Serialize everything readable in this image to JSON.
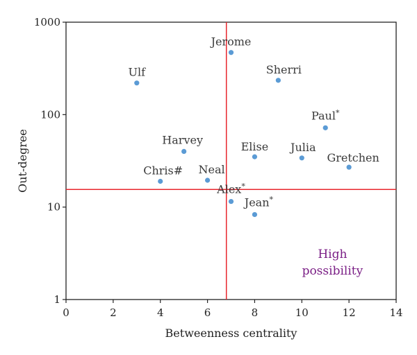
{
  "chart_data": {
    "type": "scatter",
    "title": "",
    "xlabel": "Betweenness centrality",
    "ylabel": "Out-degree",
    "xlim": [
      0,
      14
    ],
    "ylim": [
      1,
      1000
    ],
    "y_scale": "log",
    "x_ticks": [
      "0",
      "2",
      "4",
      "6",
      "8",
      "10",
      "12",
      "14"
    ],
    "x_tick_values": [
      0,
      2,
      4,
      6,
      8,
      10,
      12,
      14
    ],
    "y_ticks": [
      "1",
      "10",
      "100",
      "1000"
    ],
    "y_tick_values": [
      1,
      10,
      100,
      1000
    ],
    "grid": false,
    "reference_lines": {
      "x": 6.8,
      "y": 15.5,
      "color": "#e8262d"
    },
    "points": [
      {
        "label": "Jerome",
        "mark": "",
        "x": 7,
        "y": 470,
        "highlight": false
      },
      {
        "label": "Ulf",
        "mark": "",
        "x": 3,
        "y": 220,
        "highlight": false
      },
      {
        "label": "Sherri",
        "mark": "",
        "x": 9,
        "y": 235,
        "highlight": false
      },
      {
        "label": "Paul",
        "mark": "*",
        "x": 11,
        "y": 72,
        "highlight": false
      },
      {
        "label": "Harvey",
        "mark": "",
        "x": 5,
        "y": 40,
        "highlight": false
      },
      {
        "label": "Elise",
        "mark": "",
        "x": 8,
        "y": 35,
        "highlight": false
      },
      {
        "label": "Julia",
        "mark": "",
        "x": 10,
        "y": 34,
        "highlight": false
      },
      {
        "label": "Gretchen",
        "mark": "",
        "x": 12,
        "y": 27,
        "highlight": false
      },
      {
        "label": "Chris#",
        "mark": "",
        "x": 4,
        "y": 19,
        "highlight": false
      },
      {
        "label": "Neal",
        "mark": "",
        "x": 6,
        "y": 19.5,
        "highlight": false
      },
      {
        "label": "Alex",
        "mark": "*",
        "x": 7,
        "y": 11.5,
        "highlight": false
      },
      {
        "label": "Jean",
        "mark": "*",
        "x": 8,
        "y": 8.3,
        "highlight": true
      }
    ],
    "annotation": {
      "lines": [
        "High",
        "possibility"
      ],
      "color": "#7a1e85"
    },
    "colors": {
      "marker": "#5b9bd5",
      "highlight_label": "#e8262d",
      "axes": "#222222"
    }
  }
}
